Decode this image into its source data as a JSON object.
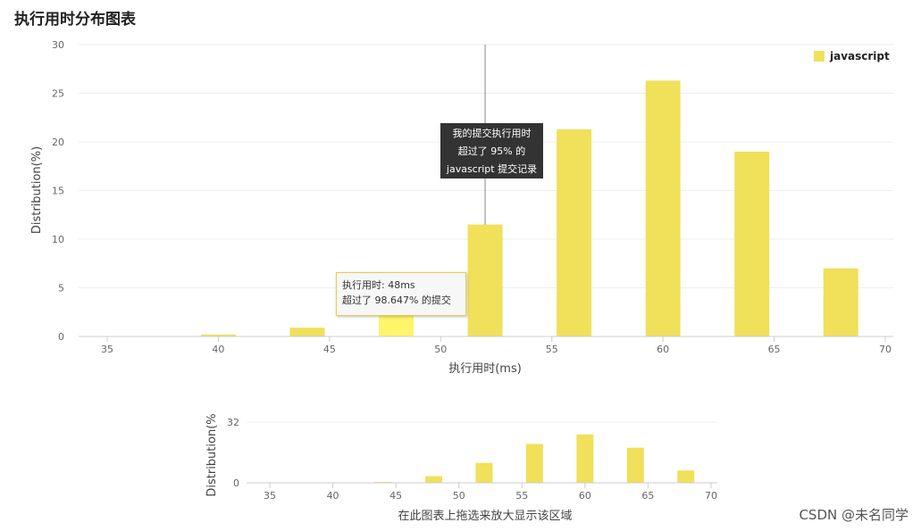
{
  "page": {
    "title": "执行用时分布图表"
  },
  "colors": {
    "bar": "#f0e05a",
    "bar_highlight": "#fff56a",
    "grid": "#eeeeee",
    "axis": "#cccccc",
    "marker_line": "#888888"
  },
  "chart_data": [
    {
      "type": "bar",
      "series": [
        {
          "name": "javascript",
          "x": [
            40,
            44,
            48,
            52,
            56,
            60,
            64,
            68
          ],
          "values": [
            0.2,
            0.9,
            2.5,
            11.5,
            21.3,
            26.3,
            19.0,
            7.0
          ]
        }
      ],
      "highlight_x": 48,
      "marker_x": 52,
      "xlabel": "执行用时(ms)",
      "ylabel": "Distribution(%)",
      "xlim": [
        35,
        70
      ],
      "xticks": [
        35,
        40,
        45,
        50,
        55,
        60,
        65,
        70
      ],
      "ylim": [
        0,
        30
      ],
      "yticks": [
        0,
        5,
        10,
        15,
        20,
        25,
        30
      ],
      "grid": true,
      "legend": "top-right",
      "tooltip_marker": {
        "line1": "我的提交执行用时",
        "line2": "超过了 95% 的",
        "line3": "javascript 提交记录"
      },
      "tooltip_hover": {
        "line1": "执行用时: 48ms",
        "line2": "超过了 98.647% 的提交"
      }
    },
    {
      "type": "bar",
      "role": "navigator",
      "series": [
        {
          "name": "javascript",
          "x": [
            44,
            48,
            52,
            56,
            60,
            64,
            68
          ],
          "values": [
            0.5,
            3.5,
            10.5,
            20.5,
            25.5,
            18.5,
            6.5
          ]
        }
      ],
      "xlabel": "在此图表上拖选来放大显示该区域",
      "ylabel": "Distribution(%",
      "xlim": [
        35,
        70
      ],
      "xticks": [
        35,
        40,
        45,
        50,
        55,
        60,
        65,
        70
      ],
      "ylim": [
        0,
        32
      ],
      "yticks": [
        0,
        32
      ]
    }
  ],
  "watermark": "CSDN @未名同学"
}
